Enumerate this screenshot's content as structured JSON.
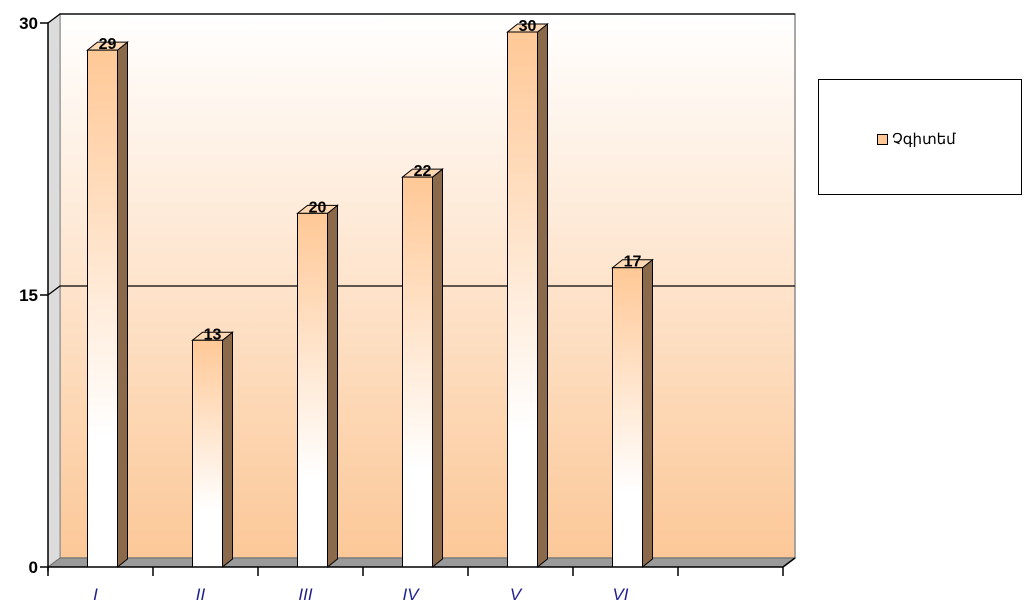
{
  "chart_data": {
    "type": "bar",
    "categories": [
      "I",
      "II",
      "III",
      "IV",
      "V",
      "VI",
      ""
    ],
    "series": [
      {
        "name": "Չգիտեմ",
        "values": [
          29,
          13,
          20,
          22,
          30,
          17,
          null
        ]
      }
    ],
    "ylim": [
      0,
      30
    ],
    "yticks": [
      "0",
      "15",
      "30"
    ],
    "grid": true,
    "legend_position": "right",
    "colors": {
      "bar_front_top": "#ffc896",
      "bar_front_bottom": "#ffffff",
      "bar_side": "#8a6a4a",
      "bar_top": "#ffd9b3",
      "bg_top": "#ffffff",
      "bg_bottom": "#fcc898",
      "floor": "#9a9a9a",
      "gridline": "#000000",
      "xtick_text": "#1f1f8f"
    }
  }
}
